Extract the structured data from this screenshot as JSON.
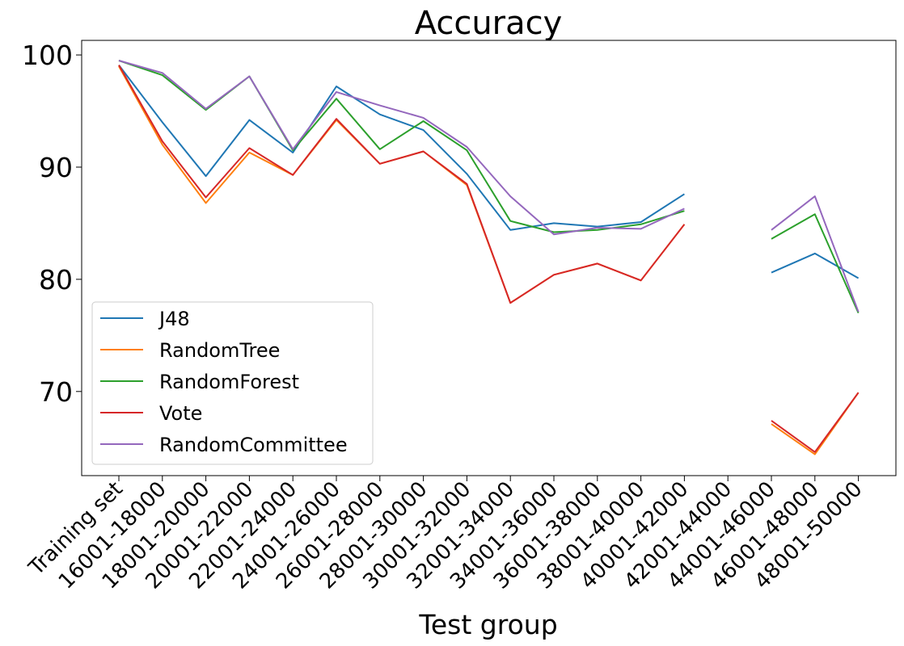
{
  "chart_data": {
    "type": "line",
    "title": "Accuracy",
    "xlabel": "Test group",
    "ylabel": "",
    "ylim": [
      62.5,
      101.3
    ],
    "yticks": [
      70,
      80,
      90,
      100
    ],
    "grid": false,
    "legend_position": "lower-left",
    "categories": [
      "Training set",
      "16001-18000",
      "18001-20000",
      "20001-22000",
      "22001-24000",
      "24001-26000",
      "26001-28000",
      "28001-30000",
      "30001-32000",
      "32001-34000",
      "34001-36000",
      "36001-38000",
      "38001-40000",
      "40001-42000",
      "42001-44000",
      "44001-46000",
      "46001-48000",
      "48001-50000"
    ],
    "series": [
      {
        "name": "J48",
        "color": "#1f77b4",
        "values": [
          99.1,
          94.0,
          89.2,
          94.2,
          91.3,
          97.2,
          94.7,
          93.3,
          89.4,
          84.4,
          85.0,
          84.7,
          85.1,
          87.6,
          null,
          80.6,
          82.3,
          80.1
        ]
      },
      {
        "name": "RandomTree",
        "color": "#ff7f0e",
        "values": [
          99.0,
          92.0,
          86.8,
          91.3,
          89.3,
          94.2,
          90.3,
          91.4,
          88.4,
          77.9,
          80.4,
          81.4,
          79.9,
          84.9,
          null,
          67.1,
          64.4,
          69.9
        ]
      },
      {
        "name": "RandomForest",
        "color": "#2ca02c",
        "values": [
          99.5,
          98.2,
          95.1,
          98.1,
          91.5,
          96.1,
          91.6,
          94.1,
          91.5,
          85.2,
          84.2,
          84.4,
          84.9,
          86.1,
          null,
          83.6,
          85.8,
          77.0
        ]
      },
      {
        "name": "Vote",
        "color": "#d62728",
        "values": [
          99.1,
          92.3,
          87.3,
          91.7,
          89.3,
          94.3,
          90.3,
          91.4,
          88.5,
          77.9,
          80.4,
          81.4,
          79.9,
          84.9,
          null,
          67.4,
          64.6,
          69.9
        ]
      },
      {
        "name": "RandomCommittee",
        "color": "#9467bd",
        "values": [
          99.5,
          98.4,
          95.2,
          98.1,
          91.6,
          96.7,
          95.5,
          94.4,
          91.8,
          87.4,
          84.0,
          84.6,
          84.5,
          86.3,
          null,
          84.4,
          87.4,
          77.1
        ]
      }
    ]
  }
}
